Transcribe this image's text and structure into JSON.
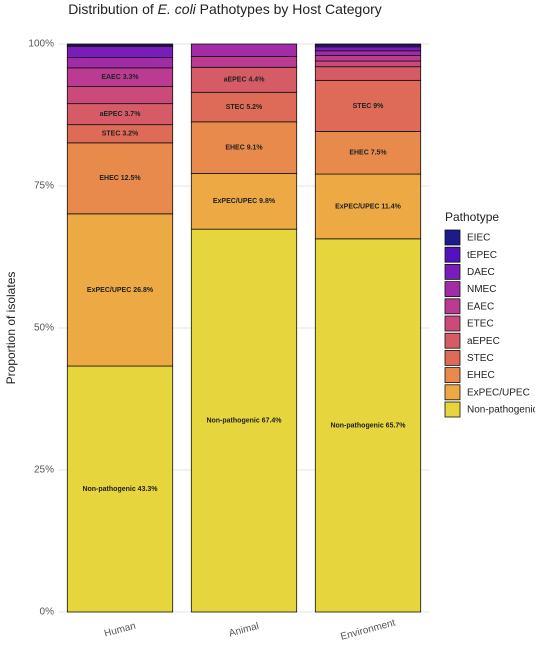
{
  "chart_data": {
    "type": "stacked_bar",
    "title": [
      "Distribution of ",
      "E. coli",
      " Pathotypes by Host Category"
    ],
    "y_label": "Proportion of isolates",
    "legend_title": "Pathotype",
    "categories": [
      "Human",
      "Animal",
      "Environment"
    ],
    "ylim": [
      0,
      100
    ],
    "yticks": [
      {
        "value": 0,
        "label": "0%"
      },
      {
        "value": 25,
        "label": "25%"
      },
      {
        "value": 50,
        "label": "50%"
      },
      {
        "value": 75,
        "label": "75%"
      },
      {
        "value": 100,
        "label": "100%"
      }
    ],
    "grid": true,
    "series": [
      {
        "name": "Non-pathogenic",
        "color": "#e6d53d",
        "values": [
          43.3,
          67.4,
          65.7
        ],
        "value_labels": [
          "Non-pathogenic 43.3%",
          "Non-pathogenic 67.4%",
          "Non-pathogenic 65.7%"
        ]
      },
      {
        "name": "ExPEC/UPEC",
        "color": "#eda944",
        "values": [
          26.8,
          9.8,
          11.4
        ],
        "value_labels": [
          "ExPEC/UPEC 26.8%",
          "ExPEC/UPEC 9.8%",
          "ExPEC/UPEC 11.4%"
        ]
      },
      {
        "name": "EHEC",
        "color": "#e88a4c",
        "values": [
          12.5,
          9.1,
          7.5
        ],
        "value_labels": [
          "EHEC 12.5%",
          "EHEC 9.1%",
          "EHEC 7.5%"
        ]
      },
      {
        "name": "STEC",
        "color": "#de6b57",
        "values": [
          3.2,
          5.2,
          9
        ],
        "value_labels": [
          "STEC 3.2%",
          "STEC 5.2%",
          "STEC 9%"
        ]
      },
      {
        "name": "aEPEC",
        "color": "#d55b66",
        "values": [
          3.7,
          4.4,
          2.4
        ],
        "value_labels": [
          "aEPEC 3.7%",
          "aEPEC 4.4%",
          null
        ]
      },
      {
        "name": "ETEC",
        "color": "#cc4a79",
        "values": [
          3.0,
          0,
          1.0
        ],
        "value_labels": [
          null,
          null,
          null
        ]
      },
      {
        "name": "EAEC",
        "color": "#bb3b93",
        "values": [
          3.3,
          1.9,
          1.0
        ],
        "value_labels": [
          "EAEC 3.3%",
          null,
          null
        ]
      },
      {
        "name": "NMEC",
        "color": "#a12ca6",
        "values": [
          1.8,
          2.2,
          0.8
        ],
        "value_labels": [
          null,
          null,
          null
        ]
      },
      {
        "name": "DAEC",
        "color": "#7a1cb9",
        "values": [
          2.0,
          0,
          0.7
        ],
        "value_labels": [
          null,
          null,
          null
        ]
      },
      {
        "name": "tEPEC",
        "color": "#5312bb",
        "values": [
          0.2,
          0,
          0.3
        ],
        "value_labels": [
          null,
          null,
          null
        ]
      },
      {
        "name": "EIEC",
        "color": "#1d1a8c",
        "values": [
          0.2,
          0,
          0.2
        ],
        "value_labels": [
          null,
          null,
          null
        ]
      }
    ]
  }
}
